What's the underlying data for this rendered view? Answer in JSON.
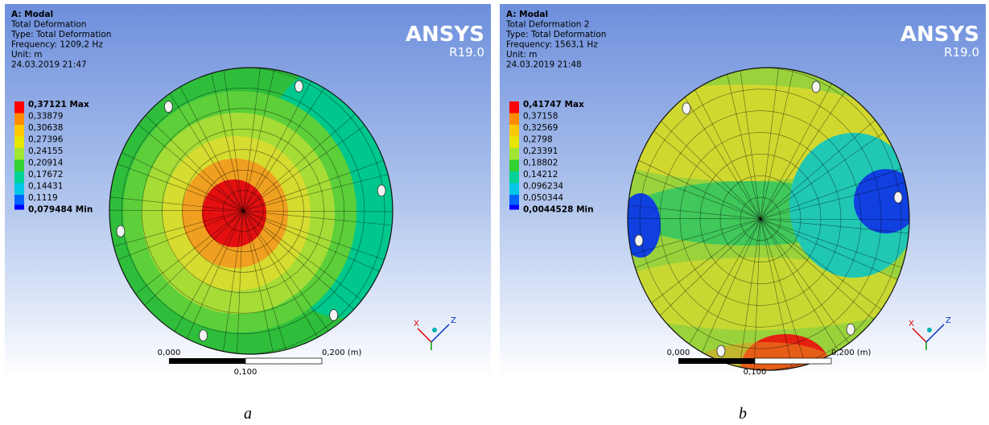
{
  "panels": [
    {
      "caption": "a",
      "header": [
        "A: Modal",
        "Total Deformation",
        "Type: Total Deformation",
        "Frequency: 1209,2 Hz",
        "Unit: m",
        "24.03.2019 21:47"
      ],
      "logo": "ANSYS",
      "version": "R19.0",
      "legend": [
        "0,37121 Max",
        "0,33879",
        "0,30638",
        "0,27396",
        "0,24155",
        "0,20914",
        "0,17672",
        "0,14431",
        "0,1119",
        "0,079484 Min"
      ],
      "scale": [
        "0,000",
        "0,100",
        "0,200 (m)"
      ],
      "axes": [
        "X",
        "Z"
      ]
    },
    {
      "caption": "b",
      "header": [
        "A: Modal",
        "Total Deformation 2",
        "Type: Total Deformation",
        "Frequency: 1563,1 Hz",
        "Unit: m",
        "24.03.2019 21:48"
      ],
      "logo": "ANSYS",
      "version": "R19.0",
      "legend": [
        "0,41747 Max",
        "0,37158",
        "0,32569",
        "0,2798",
        "0,23391",
        "0,18802",
        "0,14212",
        "0,096234",
        "0,050344",
        "0,0044528 Min"
      ],
      "scale": [
        "0,000",
        "0,100",
        "0,200 (m)"
      ],
      "axes": [
        "X",
        "Z"
      ]
    }
  ],
  "legend_colors": [
    "#ff0000",
    "#ff8c00",
    "#ffc800",
    "#e6e600",
    "#a0e632",
    "#32d232",
    "#00d296",
    "#00c8e6",
    "#0064ff"
  ]
}
